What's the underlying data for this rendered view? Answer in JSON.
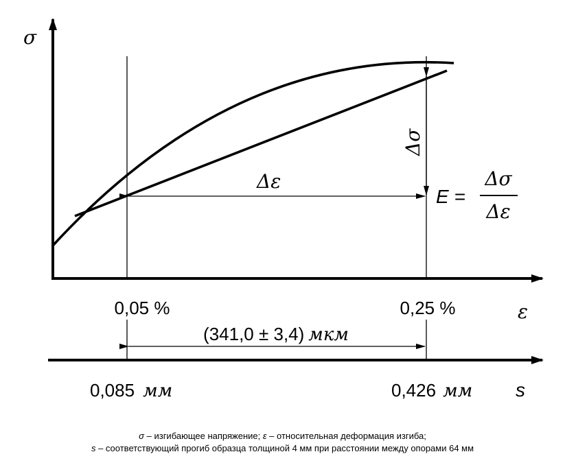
{
  "axes": {
    "y_symbol": "σ",
    "strain_symbol": "ε",
    "deflection_symbol": "s"
  },
  "annotations": {
    "delta_sigma": "Δσ",
    "delta_epsilon": "Δε",
    "formula_lhs": "E =",
    "formula_num": "Δσ",
    "formula_den": "Δε"
  },
  "strain_ticks": {
    "left": "0,05 %",
    "right": "0,25 %"
  },
  "deflection_ticks": {
    "left_value": "0,085",
    "left_unit": "мм",
    "right_value": "0,426",
    "right_unit": "мм"
  },
  "span_label": {
    "value": "(341,0 ± 3,4)",
    "unit": "мкм"
  },
  "legend": {
    "line1": [
      {
        "sym": "σ",
        "text": " – изгибающее напряжение; "
      },
      {
        "sym": "ε",
        "text": " – относительная деформация изгиба;"
      }
    ],
    "line2": [
      {
        "sym": "s",
        "text": " – соответствующий прогиб образца толщиной 4 мм при расстоянии между опорами 64 мм"
      }
    ]
  }
}
